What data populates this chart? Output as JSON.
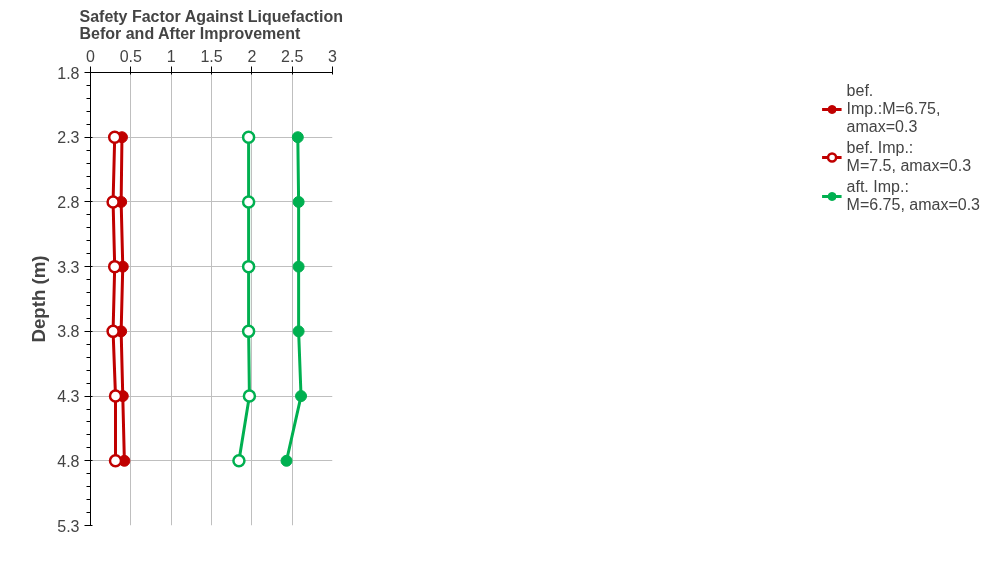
{
  "chart_data": {
    "type": "line",
    "title": "Safety Factor Against Liquefaction Befor  and After Improvement",
    "ylabel": "Depth (m)",
    "x": [
      2.3,
      2.8,
      3.3,
      3.8,
      4.3,
      4.8
    ],
    "orientation": "horizontal",
    "series": [
      {
        "name": "bef. Imp.:M=6.75, amax=0.3",
        "color": "#c00000",
        "values": [
          0.39,
          0.38,
          0.4,
          0.38,
          0.4,
          0.42
        ],
        "marker": "circle"
      },
      {
        "name": "bef. Imp.: M=7.5, amax=0.3",
        "color": "#c00000",
        "values": [
          0.3,
          0.28,
          0.3,
          0.28,
          0.31,
          0.31
        ],
        "marker": "open_circle"
      },
      {
        "name": "aft. Imp.: M=6.75, amax=0.3",
        "color": "#00b050",
        "values": [
          2.57,
          2.58,
          2.58,
          2.58,
          2.61,
          2.43
        ],
        "marker": "circle"
      },
      {
        "color": "#00b050",
        "values": [
          1.96,
          1.96,
          1.96,
          1.96,
          1.97,
          1.84
        ],
        "marker": "open_circle"
      }
    ],
    "xlim": [
      0,
      3
    ],
    "xticks": [
      0,
      {
        "value": 0.5,
        "label": "0.5"
      },
      1,
      {
        "value": 1.5,
        "label": "1.5"
      },
      2,
      {
        "value": 2.5,
        "label": "2.5"
      },
      3
    ],
    "ylim": [
      5.3,
      1.8
    ],
    "yticks": [
      {
        "value": 1.8,
        "label": "1.8"
      },
      {
        "value": 2.3,
        "label": "2.3"
      },
      {
        "value": 2.8,
        "label": "2.8"
      },
      {
        "value": 3.3,
        "label": "3.3"
      },
      {
        "value": 3.8,
        "label": "3.8"
      },
      {
        "value": 4.3,
        "label": "4.3"
      },
      {
        "value": 4.8,
        "label": "4.8"
      },
      {
        "value": 5.3,
        "label": "5.3"
      }
    ],
    "grid": true,
    "legend": "right"
  }
}
